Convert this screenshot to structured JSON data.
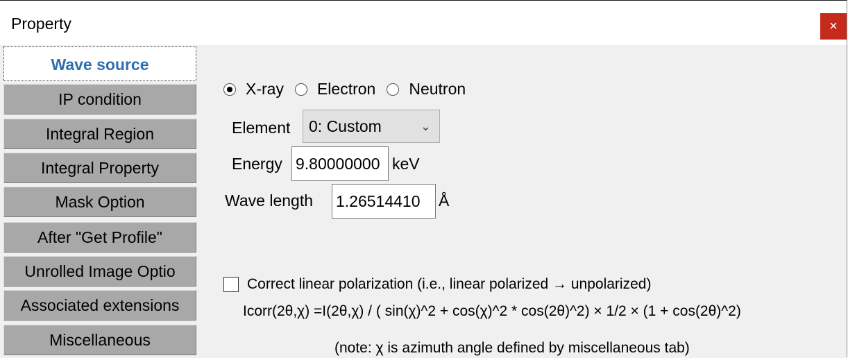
{
  "window": {
    "title": "Property",
    "close_label": "×"
  },
  "tabs": [
    {
      "label": "Wave source",
      "active": true
    },
    {
      "label": "IP condition"
    },
    {
      "label": "Integral Region"
    },
    {
      "label": "Integral Property"
    },
    {
      "label": "Mask Option"
    },
    {
      "label": "After \"Get Profile\""
    },
    {
      "label": "Unrolled  Image Optio"
    },
    {
      "label": "Associated extensions"
    },
    {
      "label": "Miscellaneous"
    }
  ],
  "wave_source": {
    "radiation": {
      "options": [
        "X-ray",
        "Electron",
        "Neutron"
      ],
      "selected": "X-ray"
    },
    "element_label": "Element",
    "element_value": "0:  Custom",
    "energy_label": "Energy",
    "energy_value": "9.80000000",
    "energy_unit": "keV",
    "wavelength_label": "Wave length",
    "wavelength_value": "1.26514410",
    "wavelength_unit": "Å",
    "polarization": {
      "label": "Correct linear polarization (i.e., linear polarized → unpolarized)",
      "checked": false,
      "formula": "Icorr(2θ,χ)  =I(2θ,χ) / ( sin(χ)^2 + cos(χ)^2 * cos(2θ)^2) × 1/2 × (1 +  cos(2θ)^2)",
      "note": "(note: χ is azimuth angle defined by miscellaneous tab)"
    }
  }
}
